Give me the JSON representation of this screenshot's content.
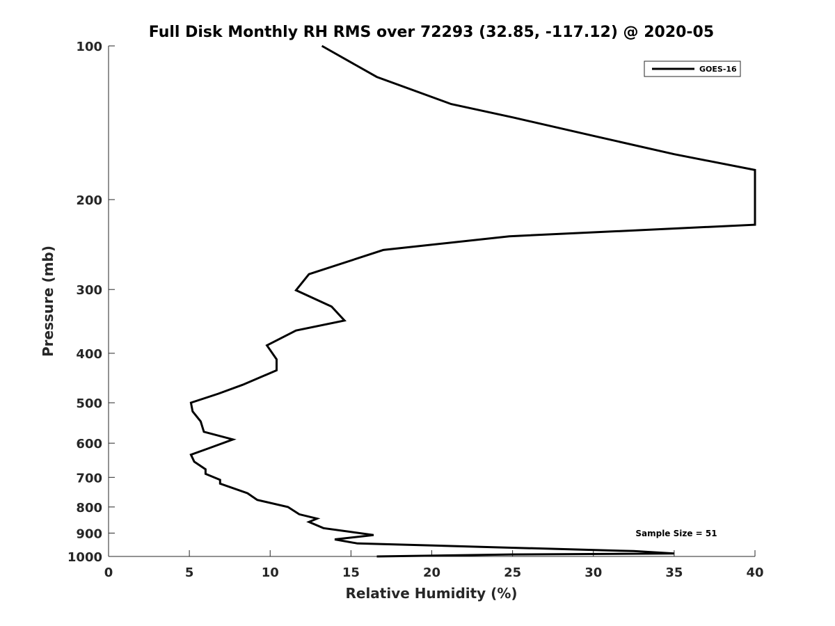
{
  "chart_data": {
    "type": "line",
    "title": "Full Disk Monthly RH RMS over 72293 (32.85, -117.12) @ 2020-05",
    "xlabel": "Relative Humidity (%)",
    "ylabel": "Pressure (mb)",
    "xlim": [
      0,
      40
    ],
    "ylim": [
      100,
      1000
    ],
    "y_scale": "log",
    "y_reversed": true,
    "xticks": [
      "0",
      "5",
      "10",
      "15",
      "20",
      "25",
      "30",
      "35",
      "40"
    ],
    "yticks": [
      "100",
      "200",
      "300",
      "400",
      "500",
      "600",
      "700",
      "800",
      "900",
      "1000"
    ],
    "grid": false,
    "legend_position": "top-right",
    "annotation": "Sample Size = 51",
    "series": [
      {
        "name": "GOES-16",
        "color": "#000000",
        "points": [
          [
            13.2,
            100
          ],
          [
            16.6,
            115
          ],
          [
            21.2,
            130
          ],
          [
            25,
            138
          ],
          [
            30,
            150
          ],
          [
            35,
            163
          ],
          [
            40,
            175
          ],
          [
            40,
            224
          ],
          [
            24.8,
            236
          ],
          [
            17,
            251
          ],
          [
            12.4,
            280
          ],
          [
            11.6,
            301
          ],
          [
            13.8,
            324
          ],
          [
            14.6,
            345
          ],
          [
            11.6,
            361
          ],
          [
            9.8,
            386
          ],
          [
            10.4,
            411
          ],
          [
            10.4,
            432
          ],
          [
            8.3,
            461
          ],
          [
            6.8,
            480
          ],
          [
            5.1,
            500
          ],
          [
            5.2,
            520
          ],
          [
            5.7,
            544
          ],
          [
            5.9,
            570
          ],
          [
            7.7,
            590
          ],
          [
            6.2,
            614
          ],
          [
            5.1,
            632
          ],
          [
            5.3,
            652
          ],
          [
            6,
            675
          ],
          [
            6,
            689
          ],
          [
            6.9,
            708
          ],
          [
            6.9,
            720
          ],
          [
            8.6,
            752
          ],
          [
            9.2,
            775
          ],
          [
            11.1,
            800
          ],
          [
            11.8,
            827
          ],
          [
            12.9,
            843
          ],
          [
            12.4,
            856
          ],
          [
            13.3,
            880
          ],
          [
            16.4,
            908
          ],
          [
            14,
            926
          ],
          [
            15.4,
            943
          ],
          [
            23.8,
            959
          ],
          [
            32.5,
            976
          ],
          [
            35,
            987
          ],
          [
            25,
            991
          ],
          [
            16.6,
            1000
          ]
        ]
      }
    ]
  }
}
